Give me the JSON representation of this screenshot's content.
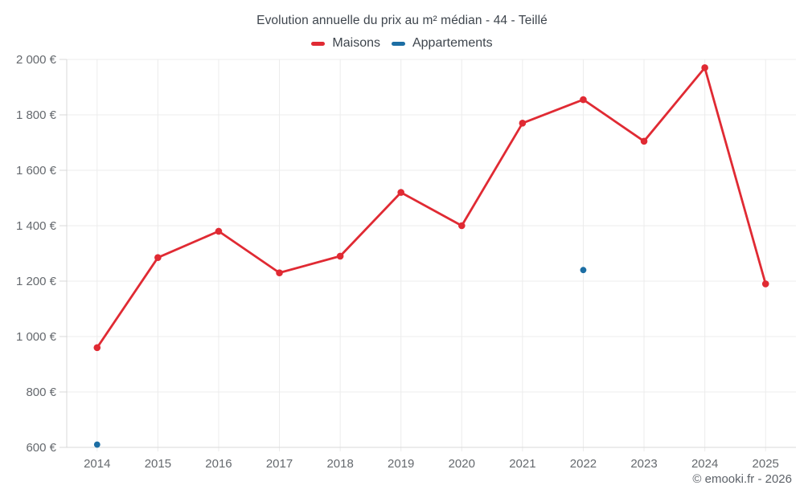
{
  "title": "Evolution annuelle du prix au m² médian - 44 - Teillé",
  "legend": [
    {
      "label": "Maisons",
      "color": "#e02a33"
    },
    {
      "label": "Appartements",
      "color": "#1c6ea4"
    }
  ],
  "watermark": "© emooki.fr - 2026",
  "colors": {
    "grid": "#ececec",
    "axis": "#d9d9d9",
    "tick_label": "#65696e",
    "background": "#ffffff"
  },
  "chart_data": {
    "type": "line",
    "title": "Evolution annuelle du prix au m² médian - 44 - Teillé",
    "xlabel": "",
    "ylabel": "",
    "categories": [
      "2014",
      "2015",
      "2016",
      "2017",
      "2018",
      "2019",
      "2020",
      "2021",
      "2022",
      "2023",
      "2024",
      "2025"
    ],
    "series": [
      {
        "name": "Maisons",
        "type": "line",
        "color": "#e02a33",
        "values": [
          960,
          1285,
          1380,
          1230,
          1290,
          1520,
          1400,
          1770,
          1855,
          1705,
          1970,
          1190
        ]
      },
      {
        "name": "Appartements",
        "type": "scatter",
        "color": "#1c6ea4",
        "values": [
          610,
          null,
          null,
          null,
          null,
          null,
          null,
          null,
          1240,
          null,
          null,
          null
        ]
      }
    ],
    "ylim": [
      600,
      2000
    ],
    "ytick_step": 200,
    "ytick_labels": [
      "600 €",
      "800 €",
      "1 000 €",
      "1 200 €",
      "1 400 €",
      "1 600 €",
      "1 800 €",
      "2 000 €"
    ],
    "grid": true,
    "legend_position": "top",
    "unit": "€ / m²"
  }
}
